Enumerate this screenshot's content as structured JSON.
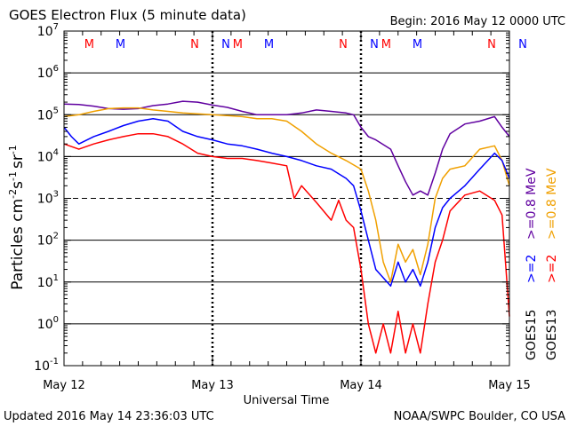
{
  "header": {
    "title": "GOES Electron Flux (5 minute data)",
    "begin": "Begin: 2016 May 12 0000 UTC"
  },
  "footer": {
    "updated": "Updated 2016 May 14 23:36:03 UTC",
    "credit": "NOAA/SWPC Boulder, CO USA"
  },
  "colors": {
    "goes15_high": "#0000ff",
    "goes13_high": "#ff0000",
    "goes15_low": "#6000a0",
    "goes13_low": "#f0a000",
    "axis": "#000000"
  },
  "chart_data": {
    "type": "line",
    "title": "GOES Electron Flux (5 minute data)",
    "xlabel": "Universal Time",
    "ylabel_base": "Particles cm",
    "ylabel_exp1": "-2",
    "ylabel_mid1": "s",
    "ylabel_exp2": "-1",
    "ylabel_mid2": "sr",
    "ylabel_exp3": "-1",
    "yscale": "log",
    "ylim": [
      0.1,
      10000000
    ],
    "xlim": [
      "2016 May 12 0000",
      "2016 May 15 0000"
    ],
    "y_ticks": [
      {
        "base": "10",
        "exp": "7",
        "value": 10000000
      },
      {
        "base": "10",
        "exp": "6",
        "value": 1000000
      },
      {
        "base": "10",
        "exp": "5",
        "value": 100000
      },
      {
        "base": "10",
        "exp": "4",
        "value": 10000
      },
      {
        "base": "10",
        "exp": "3",
        "value": 1000
      },
      {
        "base": "10",
        "exp": "2",
        "value": 100
      },
      {
        "base": "10",
        "exp": "1",
        "value": 10
      },
      {
        "base": "10",
        "exp": "0",
        "value": 1
      },
      {
        "base": "10",
        "exp": "-1",
        "value": 0.1
      }
    ],
    "x_ticks": [
      {
        "label": "May 12",
        "day": 0
      },
      {
        "label": "May 13",
        "day": 1
      },
      {
        "label": "May 14",
        "day": 2
      },
      {
        "label": "May 15",
        "day": 3
      }
    ],
    "thresholds": [
      {
        "value": 100000,
        "style": "solid"
      },
      {
        "value": 1000,
        "style": "dashed"
      }
    ],
    "markers": [
      {
        "label": "M",
        "day": 0.17,
        "satellite": "GOES13"
      },
      {
        "label": "M",
        "day": 0.38,
        "satellite": "GOES15"
      },
      {
        "label": "N",
        "day": 0.88,
        "satellite": "GOES13"
      },
      {
        "label": "N",
        "day": 1.09,
        "satellite": "GOES15"
      },
      {
        "label": "M",
        "day": 1.17,
        "satellite": "GOES13"
      },
      {
        "label": "M",
        "day": 1.38,
        "satellite": "GOES15"
      },
      {
        "label": "N",
        "day": 1.88,
        "satellite": "GOES13"
      },
      {
        "label": "N",
        "day": 2.09,
        "satellite": "GOES15"
      },
      {
        "label": "M",
        "day": 2.17,
        "satellite": "GOES13"
      },
      {
        "label": "M",
        "day": 2.38,
        "satellite": "GOES15"
      },
      {
        "label": "N",
        "day": 2.88,
        "satellite": "GOES13"
      },
      {
        "label": "N",
        "day": 3.09,
        "satellite": "GOES15"
      }
    ],
    "legend": {
      "placement": "right",
      "groups": [
        {
          "satellite": "GOES15",
          "entries": [
            {
              "label": ">=2",
              "color": "#0000ff"
            },
            {
              "label": ">=0.8 MeV",
              "color": "#6000a0"
            }
          ]
        },
        {
          "satellite": "GOES13",
          "entries": [
            {
              "label": ">=2",
              "color": "#ff0000"
            },
            {
              "label": ">=0.8 MeV",
              "color": "#f0a000"
            }
          ]
        }
      ]
    },
    "series": [
      {
        "key": "goes15_low",
        "color": "#6000a0",
        "points": [
          [
            0.0,
            180000
          ],
          [
            0.1,
            175000
          ],
          [
            0.2,
            160000
          ],
          [
            0.3,
            140000
          ],
          [
            0.4,
            135000
          ],
          [
            0.5,
            140000
          ],
          [
            0.6,
            165000
          ],
          [
            0.7,
            180000
          ],
          [
            0.8,
            210000
          ],
          [
            0.9,
            200000
          ],
          [
            1.0,
            170000
          ],
          [
            1.1,
            150000
          ],
          [
            1.2,
            120000
          ],
          [
            1.3,
            100000
          ],
          [
            1.4,
            100000
          ],
          [
            1.5,
            100000
          ],
          [
            1.6,
            110000
          ],
          [
            1.7,
            130000
          ],
          [
            1.8,
            120000
          ],
          [
            1.9,
            110000
          ],
          [
            1.95,
            100000
          ],
          [
            2.0,
            50000
          ],
          [
            2.05,
            30000
          ],
          [
            2.1,
            25000
          ],
          [
            2.2,
            15000
          ],
          [
            2.25,
            6000
          ],
          [
            2.3,
            2500
          ],
          [
            2.35,
            1200
          ],
          [
            2.4,
            1500
          ],
          [
            2.45,
            1200
          ],
          [
            2.5,
            4000
          ],
          [
            2.55,
            15000
          ],
          [
            2.6,
            35000
          ],
          [
            2.7,
            60000
          ],
          [
            2.8,
            70000
          ],
          [
            2.9,
            90000
          ],
          [
            2.95,
            50000
          ],
          [
            3.0,
            30000
          ]
        ]
      },
      {
        "key": "goes13_low",
        "color": "#f0a000",
        "points": [
          [
            0.0,
            90000
          ],
          [
            0.1,
            100000
          ],
          [
            0.2,
            120000
          ],
          [
            0.3,
            140000
          ],
          [
            0.4,
            145000
          ],
          [
            0.5,
            145000
          ],
          [
            0.6,
            130000
          ],
          [
            0.7,
            120000
          ],
          [
            0.8,
            110000
          ],
          [
            0.9,
            105000
          ],
          [
            1.0,
            100000
          ],
          [
            1.1,
            95000
          ],
          [
            1.2,
            90000
          ],
          [
            1.3,
            80000
          ],
          [
            1.4,
            80000
          ],
          [
            1.5,
            70000
          ],
          [
            1.6,
            40000
          ],
          [
            1.7,
            20000
          ],
          [
            1.8,
            12000
          ],
          [
            1.9,
            8000
          ],
          [
            2.0,
            5000
          ],
          [
            2.05,
            1500
          ],
          [
            2.1,
            300
          ],
          [
            2.15,
            30
          ],
          [
            2.2,
            10
          ],
          [
            2.25,
            80
          ],
          [
            2.3,
            30
          ],
          [
            2.35,
            60
          ],
          [
            2.4,
            15
          ],
          [
            2.45,
            80
          ],
          [
            2.5,
            1000
          ],
          [
            2.55,
            3000
          ],
          [
            2.6,
            5000
          ],
          [
            2.7,
            6000
          ],
          [
            2.8,
            15000
          ],
          [
            2.9,
            18000
          ],
          [
            2.95,
            8000
          ],
          [
            3.0,
            2000
          ]
        ]
      },
      {
        "key": "goes15_high",
        "color": "#0000ff",
        "points": [
          [
            0.0,
            50000
          ],
          [
            0.05,
            30000
          ],
          [
            0.1,
            20000
          ],
          [
            0.2,
            30000
          ],
          [
            0.3,
            40000
          ],
          [
            0.4,
            55000
          ],
          [
            0.5,
            70000
          ],
          [
            0.6,
            80000
          ],
          [
            0.7,
            70000
          ],
          [
            0.8,
            40000
          ],
          [
            0.9,
            30000
          ],
          [
            1.0,
            25000
          ],
          [
            1.1,
            20000
          ],
          [
            1.2,
            18000
          ],
          [
            1.3,
            15000
          ],
          [
            1.4,
            12000
          ],
          [
            1.5,
            10000
          ],
          [
            1.6,
            8000
          ],
          [
            1.7,
            6000
          ],
          [
            1.8,
            5000
          ],
          [
            1.9,
            3000
          ],
          [
            1.95,
            2000
          ],
          [
            2.0,
            500
          ],
          [
            2.05,
            100
          ],
          [
            2.1,
            20
          ],
          [
            2.2,
            8
          ],
          [
            2.25,
            30
          ],
          [
            2.3,
            10
          ],
          [
            2.35,
            20
          ],
          [
            2.4,
            8
          ],
          [
            2.45,
            30
          ],
          [
            2.5,
            200
          ],
          [
            2.55,
            600
          ],
          [
            2.6,
            1000
          ],
          [
            2.7,
            2000
          ],
          [
            2.8,
            5000
          ],
          [
            2.9,
            12000
          ],
          [
            2.95,
            8000
          ],
          [
            3.0,
            3000
          ]
        ]
      },
      {
        "key": "goes13_high",
        "color": "#ff0000",
        "points": [
          [
            0.0,
            20000
          ],
          [
            0.1,
            15000
          ],
          [
            0.2,
            20000
          ],
          [
            0.3,
            25000
          ],
          [
            0.4,
            30000
          ],
          [
            0.5,
            35000
          ],
          [
            0.6,
            35000
          ],
          [
            0.7,
            30000
          ],
          [
            0.8,
            20000
          ],
          [
            0.9,
            12000
          ],
          [
            1.0,
            10000
          ],
          [
            1.1,
            9000
          ],
          [
            1.2,
            9000
          ],
          [
            1.3,
            8000
          ],
          [
            1.4,
            7000
          ],
          [
            1.5,
            6000
          ],
          [
            1.55,
            1000
          ],
          [
            1.6,
            2000
          ],
          [
            1.7,
            800
          ],
          [
            1.8,
            300
          ],
          [
            1.85,
            900
          ],
          [
            1.9,
            300
          ],
          [
            1.95,
            200
          ],
          [
            2.0,
            20
          ],
          [
            2.05,
            1
          ],
          [
            2.1,
            0.2
          ],
          [
            2.15,
            1
          ],
          [
            2.2,
            0.2
          ],
          [
            2.25,
            2
          ],
          [
            2.3,
            0.2
          ],
          [
            2.35,
            1
          ],
          [
            2.4,
            0.2
          ],
          [
            2.45,
            3
          ],
          [
            2.5,
            30
          ],
          [
            2.55,
            100
          ],
          [
            2.6,
            500
          ],
          [
            2.7,
            1200
          ],
          [
            2.8,
            1500
          ],
          [
            2.9,
            900
          ],
          [
            2.95,
            400
          ],
          [
            3.0,
            1.5
          ]
        ]
      }
    ]
  }
}
